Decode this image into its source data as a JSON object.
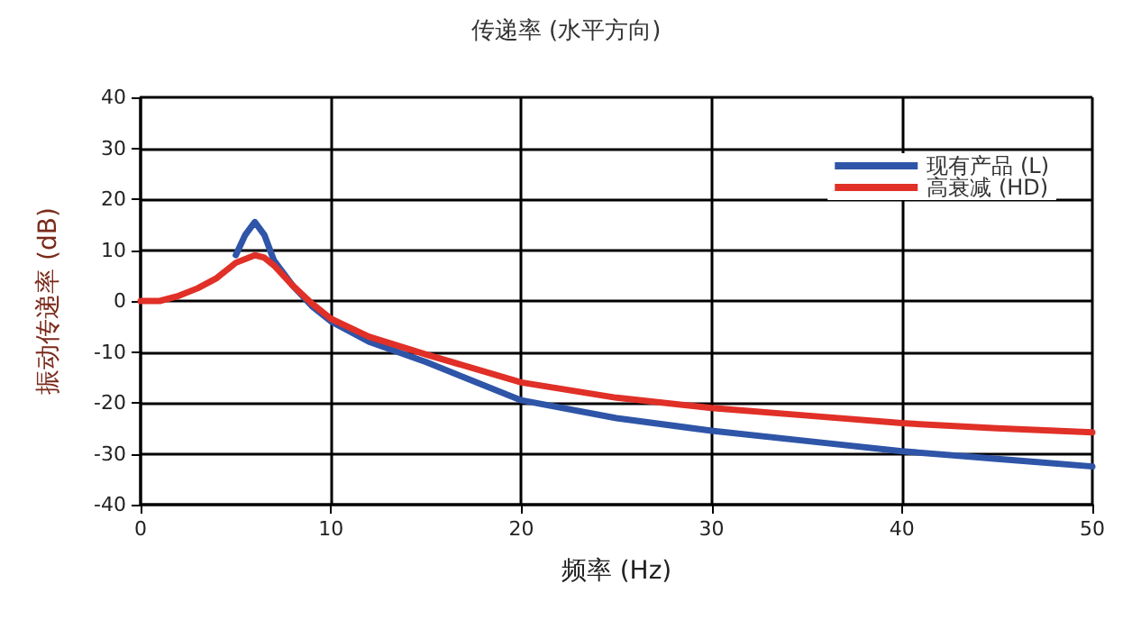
{
  "chart_data": {
    "type": "line",
    "title": "传递率 (水平方向)",
    "xlabel": "频率 (Hz)",
    "ylabel": "振动传递率 (dB)",
    "xlim": [
      0,
      50
    ],
    "xticks": [
      0,
      10,
      20,
      30,
      40,
      50
    ],
    "ylim": [
      -40,
      40
    ],
    "yticks": [
      -40,
      -30,
      -20,
      -10,
      0,
      10,
      20,
      30,
      40
    ],
    "grid": true,
    "legend": "top right",
    "marker": "none",
    "line_style": "solid",
    "series": [
      {
        "name": "现有产品 (L)",
        "color": "#2f55a8",
        "x": [
          5,
          5.5,
          6,
          6.5,
          7,
          8,
          9,
          10,
          12,
          15,
          20,
          25,
          30,
          35,
          40,
          45,
          50
        ],
        "values": [
          9,
          13,
          15.5,
          13,
          8,
          3,
          -1,
          -4,
          -8,
          -12,
          -19.5,
          -23,
          -25.5,
          -27.5,
          -29.5,
          -31,
          -32.5
        ]
      },
      {
        "name": "高衰减 (HD)",
        "color": "#e03027",
        "x": [
          0,
          1,
          2,
          3,
          4,
          5,
          6,
          6.5,
          7,
          8,
          9,
          10,
          12,
          15,
          20,
          25,
          30,
          35,
          40,
          45,
          50
        ],
        "values": [
          0,
          0,
          1,
          2.5,
          4.5,
          7.5,
          9,
          8.5,
          7,
          3,
          -0.5,
          -3.5,
          -7,
          -10.5,
          -16,
          -19,
          -21,
          -22.5,
          -24,
          -25,
          -25.8
        ]
      }
    ]
  }
}
